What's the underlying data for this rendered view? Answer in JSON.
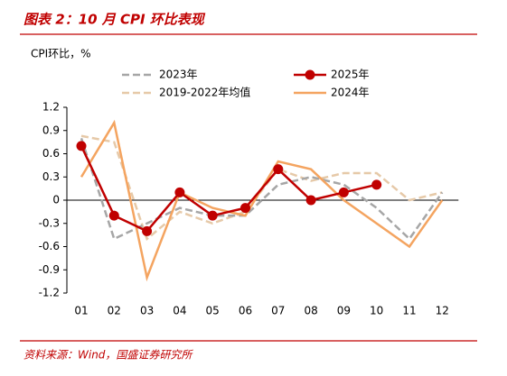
{
  "title": "图表 2：10 月 CPI 环比表现",
  "source": "资料来源：Wind，国盛证券研究所",
  "chart_data": {
    "type": "line",
    "y_label": "CPI环比，%",
    "categories": [
      "01",
      "02",
      "03",
      "04",
      "05",
      "06",
      "07",
      "08",
      "09",
      "10",
      "11",
      "12"
    ],
    "ylim": [
      -1.2,
      1.2
    ],
    "yticks": [
      1.2,
      0.9,
      0.6,
      0.3,
      0,
      -0.3,
      -0.6,
      -0.9,
      -1.2
    ],
    "series": [
      {
        "name": "2023年",
        "color": "#a6a6a6",
        "dash": true,
        "marker": false,
        "values": [
          0.8,
          -0.5,
          -0.3,
          -0.1,
          -0.2,
          -0.2,
          0.2,
          0.3,
          0.2,
          -0.1,
          -0.5,
          0.1
        ]
      },
      {
        "name": "2025年",
        "color": "#c00000",
        "dash": false,
        "marker": true,
        "values": [
          0.7,
          -0.2,
          -0.4,
          0.1,
          -0.2,
          -0.1,
          0.4,
          0.0,
          0.1,
          0.2,
          null,
          null
        ]
      },
      {
        "name": "2019-2022年均值",
        "color": "#e6c9a8",
        "dash": true,
        "marker": false,
        "values": [
          0.83,
          0.75,
          -0.5,
          -0.15,
          -0.3,
          -0.15,
          0.4,
          0.25,
          0.35,
          0.35,
          0.0,
          0.1
        ]
      },
      {
        "name": "2024年",
        "color": "#f4a460",
        "dash": false,
        "marker": false,
        "values": [
          0.3,
          1.0,
          -1.0,
          0.1,
          -0.1,
          -0.2,
          0.5,
          0.4,
          0.0,
          -0.3,
          -0.6,
          0.0
        ]
      }
    ]
  }
}
